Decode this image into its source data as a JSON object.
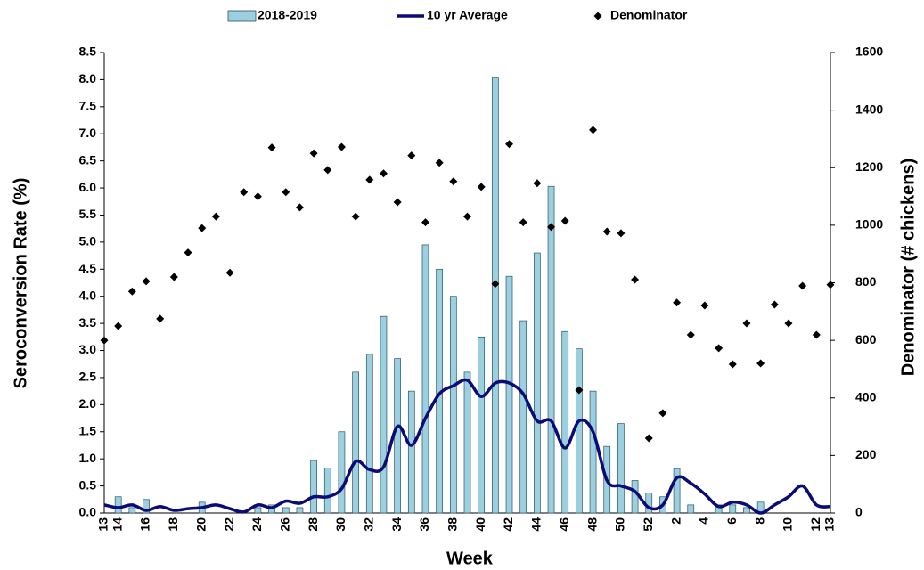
{
  "chart_data": {
    "type": "bar",
    "x_label": "Week",
    "y_label": "Seroconversion Rate (%)",
    "y2_label": "Denominator  (# chickens)",
    "categories": [
      "13",
      "14",
      null,
      "16",
      null,
      "18",
      null,
      "20",
      null,
      "22",
      null,
      "24",
      null,
      "26",
      null,
      "28",
      null,
      "30",
      null,
      "32",
      null,
      "34",
      null,
      "36",
      null,
      "38",
      null,
      "40",
      null,
      "42",
      null,
      "44",
      null,
      "46",
      null,
      "48",
      null,
      "50",
      null,
      "52",
      null,
      "2",
      null,
      "4",
      null,
      "6",
      null,
      "8",
      null,
      "10",
      null,
      "12",
      "13"
    ],
    "ylim": [
      0,
      8.5
    ],
    "yticks": [
      {
        "value": 0,
        "label": "0.0"
      },
      0.5,
      {
        "value": 1,
        "label": "1.0"
      },
      1.5,
      {
        "value": 2,
        "label": "2.0"
      },
      2.5,
      {
        "value": 3,
        "label": "3.0"
      },
      3.5,
      {
        "value": 4,
        "label": "4.0"
      },
      4.5,
      {
        "value": 5,
        "label": "5.0"
      },
      5.5,
      {
        "value": 6,
        "label": "6.0"
      },
      6.5,
      {
        "value": 7,
        "label": "7.0"
      },
      7.5,
      {
        "value": 8,
        "label": "8.0"
      },
      8.5
    ],
    "y2lim": [
      0,
      1600
    ],
    "y2ticks": [
      0,
      200,
      400,
      600,
      800,
      1000,
      1200,
      1400,
      1600
    ],
    "series": [
      {
        "name": "2018-2019",
        "type": "bar",
        "color": "#9ccfe0",
        "values": [
          0,
          0.3,
          0.1,
          0.25,
          0,
          0,
          0,
          0.2,
          0,
          0,
          0,
          0.1,
          0.15,
          0.1,
          0.1,
          0.97,
          0.83,
          1.5,
          2.6,
          2.93,
          3.63,
          2.85,
          2.25,
          4.95,
          4.5,
          4.0,
          2.6,
          3.25,
          8.03,
          4.37,
          3.55,
          4.8,
          6.03,
          3.35,
          3.03,
          2.25,
          1.23,
          1.65,
          0.6,
          0.37,
          0.3,
          0.82,
          0.15,
          0,
          0.15,
          0.15,
          0.1,
          0.2,
          0,
          0,
          0,
          0,
          0
        ]
      },
      {
        "name": "10 yr Average",
        "type": "line",
        "color": "#0b0b78",
        "values": [
          0.15,
          0.1,
          0.15,
          0.05,
          0.12,
          0.05,
          0.08,
          0.1,
          0.15,
          0.08,
          0.02,
          0.15,
          0.1,
          0.22,
          0.18,
          0.3,
          0.3,
          0.45,
          0.95,
          0.8,
          0.85,
          1.6,
          1.25,
          1.75,
          2.2,
          2.35,
          2.45,
          2.15,
          2.4,
          2.4,
          2.2,
          1.7,
          1.7,
          1.2,
          1.7,
          1.5,
          0.6,
          0.5,
          0.4,
          0.1,
          0.15,
          0.65,
          0.55,
          0.35,
          0.12,
          0.2,
          0.15,
          0.0,
          0.15,
          0.3,
          0.5,
          0.15,
          0.12
        ]
      },
      {
        "name": "Denominator",
        "type": "scatter",
        "color": "#000000",
        "axis": "y2",
        "values": [
          600,
          650,
          770,
          805,
          675,
          820,
          905,
          990,
          1030,
          835,
          1115,
          1100,
          1270,
          1115,
          1062,
          1250,
          1192,
          1272,
          1030,
          1158,
          1180,
          1080,
          1242,
          1010,
          1217,
          1152,
          1030,
          1133,
          796,
          1282,
          1010,
          1146,
          994,
          1015,
          427,
          1331,
          978,
          972,
          811,
          260,
          347,
          731,
          619,
          721,
          573,
          517,
          659,
          520,
          724,
          659,
          789,
          619,
          793
        ]
      }
    ]
  }
}
